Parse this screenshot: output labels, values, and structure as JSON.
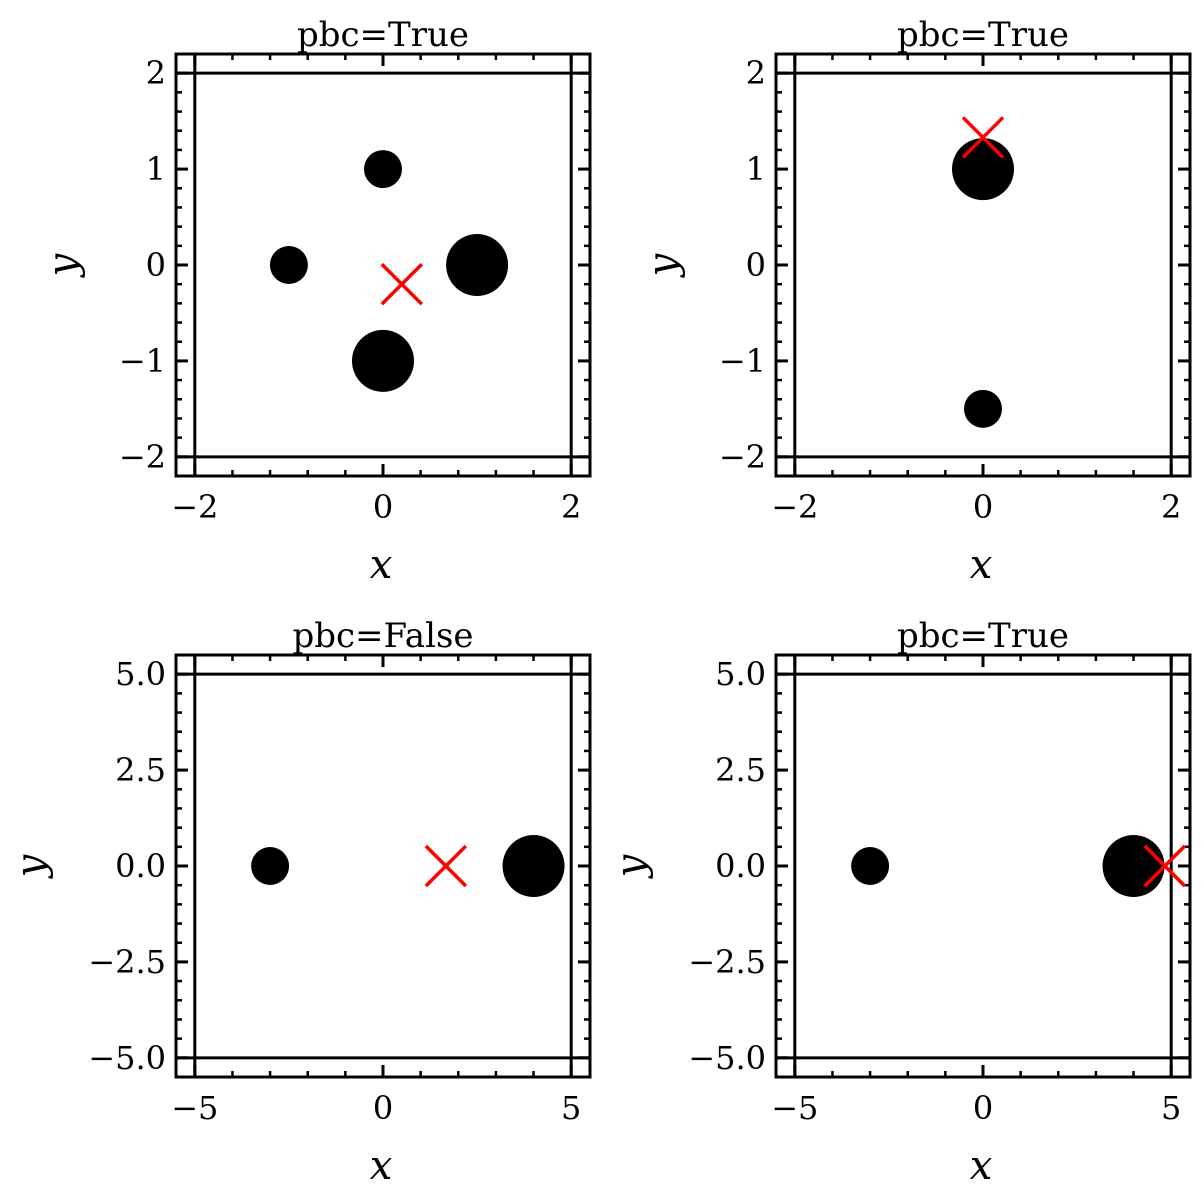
{
  "colors": {
    "points": "#000000",
    "marker": "#ff0000",
    "axes": "#000000"
  },
  "chart_data": [
    {
      "type": "scatter",
      "title": "pbc=True",
      "xlabel": "x",
      "ylabel": "y",
      "xlim": [
        -2.2,
        2.2
      ],
      "ylim": [
        -2.2,
        2.2
      ],
      "xticks": [
        -2,
        0,
        2
      ],
      "yticks": [
        -2,
        -1,
        0,
        1,
        2
      ],
      "xtick_labels": [
        "−2",
        "0",
        "2"
      ],
      "ytick_labels": [
        "−2",
        "−1",
        "0",
        "1",
        "2"
      ],
      "box": [
        -2,
        2,
        -2,
        2
      ],
      "points": [
        {
          "x": 0,
          "y": 1,
          "weight": 1
        },
        {
          "x": -1,
          "y": 0,
          "weight": 1
        },
        {
          "x": 1,
          "y": 0,
          "weight": 2
        },
        {
          "x": 0,
          "y": -1,
          "weight": 2
        }
      ],
      "marker": {
        "x": 0.2,
        "y": -0.2
      },
      "grid": false
    },
    {
      "type": "scatter",
      "title": "pbc=True",
      "xlabel": "x",
      "ylabel": "y",
      "xlim": [
        -2.2,
        2.2
      ],
      "ylim": [
        -2.2,
        2.2
      ],
      "xticks": [
        -2,
        0,
        2
      ],
      "yticks": [
        -2,
        -1,
        0,
        1,
        2
      ],
      "xtick_labels": [
        "−2",
        "0",
        "2"
      ],
      "ytick_labels": [
        "−2",
        "−1",
        "0",
        "1",
        "2"
      ],
      "box": [
        -2,
        2,
        -2,
        2
      ],
      "points": [
        {
          "x": 0,
          "y": 1,
          "weight": 2
        },
        {
          "x": 0,
          "y": -1.5,
          "weight": 1
        }
      ],
      "marker": {
        "x": 0,
        "y": 1.33
      },
      "grid": false
    },
    {
      "type": "scatter",
      "title": "pbc=False",
      "xlabel": "x",
      "ylabel": "y",
      "xlim": [
        -5.5,
        5.5
      ],
      "ylim": [
        -5.5,
        5.5
      ],
      "xticks": [
        -5,
        0,
        5
      ],
      "yticks": [
        -5,
        -2.5,
        0,
        2.5,
        5
      ],
      "xtick_labels": [
        "−5",
        "0",
        "5"
      ],
      "ytick_labels": [
        "−5.0",
        "−2.5",
        "0.0",
        "2.5",
        "5.0"
      ],
      "box": [
        -5,
        5,
        -5,
        5
      ],
      "points": [
        {
          "x": -3,
          "y": 0,
          "weight": 1
        },
        {
          "x": 4,
          "y": 0,
          "weight": 2
        }
      ],
      "marker": {
        "x": 1.67,
        "y": 0
      },
      "grid": false
    },
    {
      "type": "scatter",
      "title": "pbc=True",
      "xlabel": "x",
      "ylabel": "y",
      "xlim": [
        -5.5,
        5.5
      ],
      "ylim": [
        -5.5,
        5.5
      ],
      "xticks": [
        -5,
        0,
        5
      ],
      "yticks": [
        -5,
        -2.5,
        0,
        2.5,
        5
      ],
      "xtick_labels": [
        "−5",
        "0",
        "5"
      ],
      "ytick_labels": [
        "−5.0",
        "−2.5",
        "0.0",
        "2.5",
        "5.0"
      ],
      "box": [
        -5,
        5,
        -5,
        5
      ],
      "points": [
        {
          "x": -3,
          "y": 0,
          "weight": 1
        },
        {
          "x": 4,
          "y": 0,
          "weight": 2
        }
      ],
      "marker": {
        "x": 4.83,
        "y": 0
      },
      "grid": false
    }
  ]
}
